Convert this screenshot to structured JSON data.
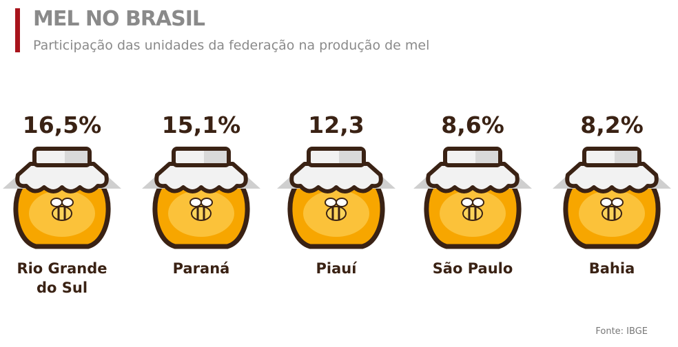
{
  "chart_data": {
    "type": "pictogram",
    "title": "MEL NO BRASIL",
    "subtitle": "Participação das unidades da federação na produção de mel",
    "categories": [
      "Rio Grande do Sul",
      "Paraná",
      "Piauí",
      "São Paulo",
      "Bahia"
    ],
    "values": [
      16.5,
      15.1,
      12.3,
      8.6,
      8.2
    ],
    "value_labels": [
      "16,5%",
      "15,1%",
      "12,3",
      "8,6%",
      "8,2%"
    ],
    "color": "#f7a600",
    "source": "Fonte: IBGE"
  }
}
